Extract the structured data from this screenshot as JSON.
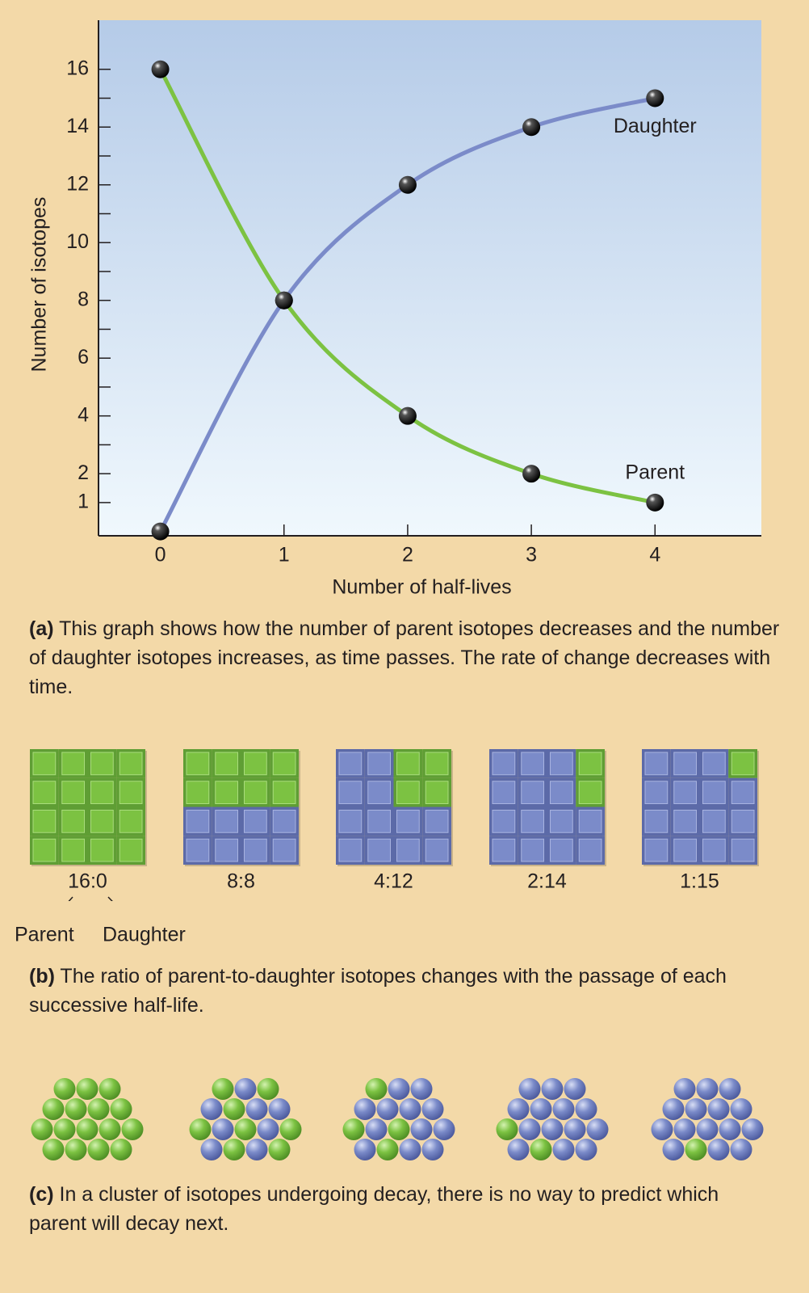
{
  "chart_data": {
    "type": "line",
    "x": [
      0,
      1,
      2,
      3,
      4
    ],
    "xlim": [
      -0.5,
      4.86
    ],
    "xticks": [
      0,
      1,
      2,
      3,
      4
    ],
    "ylim": [
      -0.15,
      17.7
    ],
    "yticks": [
      1,
      2,
      4,
      6,
      8,
      10,
      12,
      14,
      16
    ],
    "yminor_ticks": [
      3,
      5,
      7,
      9,
      11,
      13,
      15
    ],
    "x_label": "Number of half-lives",
    "y_label": "Number of isotopes",
    "background": [
      "#b5cbe8",
      "#f0f8fd"
    ],
    "series": [
      {
        "name": "Parent",
        "color": "#7cc242",
        "values": [
          16,
          8,
          4,
          2,
          1
        ]
      },
      {
        "name": "Daughter",
        "color": "#7b8bc9",
        "values": [
          0,
          8,
          12,
          14,
          15
        ]
      }
    ]
  },
  "captions": [
    {
      "label": "(a)",
      "text": "This graph shows how the number of parent isotopes decreases and the number of daughter isotopes increases, as time passes. The rate of change decreases with time."
    },
    {
      "label": "(b)",
      "text": "The ratio of parent-to-daughter isotopes changes with the passage of each successive half-life."
    },
    {
      "label": "(c)",
      "text": "In a cluster of isotopes undergoing decay, there is no way to predict which parent will decay next."
    }
  ],
  "ratios": {
    "panels": [
      {
        "ratio": "16:0",
        "parent": 16
      },
      {
        "ratio": "8:8",
        "parent": 8
      },
      {
        "ratio": "4:12",
        "parent": 4
      },
      {
        "ratio": "2:14",
        "parent": 2
      },
      {
        "ratio": "1:15",
        "parent": 1
      }
    ],
    "pointer_labels": [
      "Parent",
      "Daughter"
    ]
  }
}
